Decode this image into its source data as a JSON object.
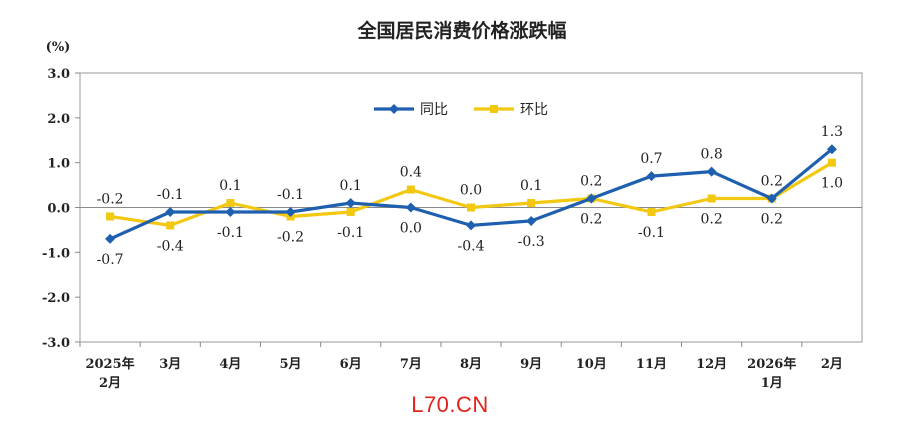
{
  "chart_data": {
    "type": "line",
    "title": "全国居民消费价格涨跌幅",
    "ylabel": "(%)",
    "ylim": [
      -3.0,
      3.0
    ],
    "yticks": [
      "3.0",
      "2.0",
      "1.0",
      "0.0",
      "-1.0",
      "-2.0",
      "-3.0"
    ],
    "categories": [
      [
        "2025年",
        "2月"
      ],
      [
        "3月"
      ],
      [
        "4月"
      ],
      [
        "5月"
      ],
      [
        "6月"
      ],
      [
        "7月"
      ],
      [
        "8月"
      ],
      [
        "9月"
      ],
      [
        "10月"
      ],
      [
        "11月"
      ],
      [
        "12月"
      ],
      [
        "2026年",
        "1月"
      ],
      [
        "2月"
      ]
    ],
    "series": [
      {
        "name": "同比",
        "color": "#1f5fb0",
        "values": [
          -0.7,
          -0.1,
          -0.1,
          -0.1,
          0.1,
          0.0,
          -0.4,
          -0.3,
          0.2,
          0.7,
          0.8,
          0.2,
          1.3
        ],
        "labels": [
          "-0.7",
          "-0.1",
          "-0.1",
          "-0.1",
          "0.1",
          "0.0",
          "-0.4",
          "-0.3",
          "0.2",
          "0.7",
          "0.8",
          "0.2",
          "1.3"
        ]
      },
      {
        "name": "环比",
        "color": "#f2c811",
        "values": [
          -0.2,
          -0.4,
          0.1,
          -0.2,
          -0.1,
          0.4,
          0.0,
          0.1,
          0.2,
          -0.1,
          0.2,
          0.2,
          1.0
        ],
        "labels": [
          "-0.2",
          "-0.4",
          "0.1",
          "-0.2",
          "-0.1",
          "0.4",
          "0.0",
          "0.1",
          "0.2",
          "-0.1",
          "0.2",
          "0.2",
          "1.0"
        ]
      }
    ],
    "legend_position": "top-center",
    "grid": false
  },
  "watermark": "L70.CN"
}
